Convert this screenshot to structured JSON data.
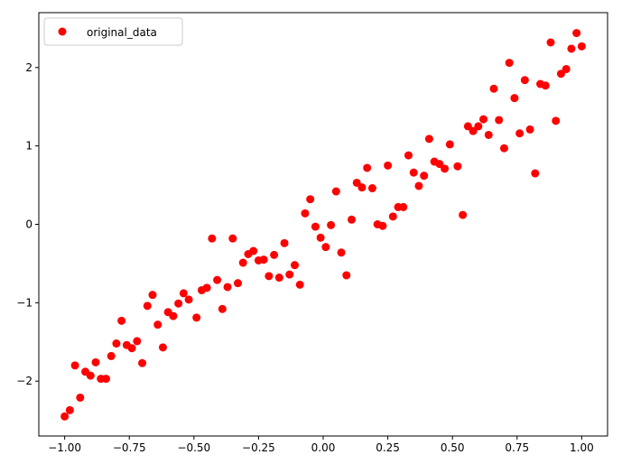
{
  "chart_data": {
    "type": "scatter",
    "series": [
      {
        "name": "original_data",
        "color": "#ff0000",
        "x": [
          -1.0,
          -0.98,
          -0.96,
          -0.94,
          -0.92,
          -0.9,
          -0.88,
          -0.86,
          -0.84,
          -0.82,
          -0.8,
          -0.78,
          -0.76,
          -0.74,
          -0.72,
          -0.7,
          -0.68,
          -0.66,
          -0.64,
          -0.62,
          -0.6,
          -0.58,
          -0.56,
          -0.54,
          -0.52,
          -0.49,
          -0.47,
          -0.45,
          -0.43,
          -0.41,
          -0.39,
          -0.37,
          -0.35,
          -0.33,
          -0.31,
          -0.29,
          -0.27,
          -0.25,
          -0.23,
          -0.21,
          -0.19,
          -0.17,
          -0.15,
          -0.13,
          -0.11,
          -0.09,
          -0.07,
          -0.05,
          -0.03,
          -0.01,
          0.01,
          0.03,
          0.05,
          0.07,
          0.09,
          0.11,
          0.13,
          0.15,
          0.17,
          0.19,
          0.21,
          0.23,
          0.25,
          0.27,
          0.29,
          0.31,
          0.33,
          0.35,
          0.37,
          0.39,
          0.41,
          0.43,
          0.45,
          0.47,
          0.49,
          0.52,
          0.54,
          0.56,
          0.58,
          0.6,
          0.62,
          0.64,
          0.66,
          0.68,
          0.7,
          0.72,
          0.74,
          0.76,
          0.78,
          0.8,
          0.82,
          0.84,
          0.86,
          0.88,
          0.9,
          0.92,
          0.94,
          0.96,
          0.98,
          1.0
        ],
        "values": [
          -2.45,
          -2.37,
          -1.8,
          -2.21,
          -1.88,
          -1.93,
          -1.76,
          -1.97,
          -1.97,
          -1.68,
          -1.52,
          -1.23,
          -1.54,
          -1.58,
          -1.49,
          -1.77,
          -1.04,
          -0.9,
          -1.28,
          -1.57,
          -1.12,
          -1.17,
          -1.01,
          -0.88,
          -0.96,
          -1.19,
          -0.84,
          -0.81,
          -0.18,
          -0.71,
          -1.08,
          -0.8,
          -0.18,
          -0.75,
          -0.49,
          -0.38,
          -0.34,
          -0.46,
          -0.45,
          -0.66,
          -0.39,
          -0.68,
          -0.24,
          -0.64,
          -0.52,
          -0.77,
          0.14,
          0.32,
          -0.03,
          -0.17,
          -0.29,
          -0.01,
          0.42,
          -0.36,
          -0.65,
          0.06,
          0.53,
          0.47,
          0.72,
          0.46,
          0.0,
          -0.02,
          0.75,
          0.1,
          0.22,
          0.22,
          0.88,
          0.66,
          0.49,
          0.62,
          1.09,
          0.8,
          0.77,
          0.71,
          1.02,
          0.74,
          0.12,
          1.25,
          1.19,
          1.25,
          1.34,
          1.14,
          1.73,
          1.33,
          0.97,
          2.06,
          1.61,
          1.16,
          1.84,
          1.21,
          0.65,
          1.79,
          1.77,
          2.32,
          1.32,
          1.92,
          1.98,
          2.24,
          2.44,
          2.27
        ]
      }
    ],
    "xlim": [
      -1.1,
      1.1
    ],
    "ylim": [
      -2.7,
      2.7
    ],
    "xticks": [
      {
        "value": -1,
        "label": "−1.00"
      },
      {
        "value": -0.75,
        "label": "−0.75"
      },
      {
        "value": -0.5,
        "label": "−0.50"
      },
      {
        "value": -0.25,
        "label": "−0.25"
      },
      {
        "value": 0,
        "label": "0.00"
      },
      {
        "value": 0.25,
        "label": "0.25"
      },
      {
        "value": 0.5,
        "label": "0.50"
      },
      {
        "value": 0.75,
        "label": "0.75"
      },
      {
        "value": 1,
        "label": "1.00"
      }
    ],
    "yticks": [
      {
        "value": -2,
        "label": "−2"
      },
      {
        "value": -1,
        "label": "−1"
      },
      0,
      1,
      2
    ],
    "legend": "upper left"
  }
}
